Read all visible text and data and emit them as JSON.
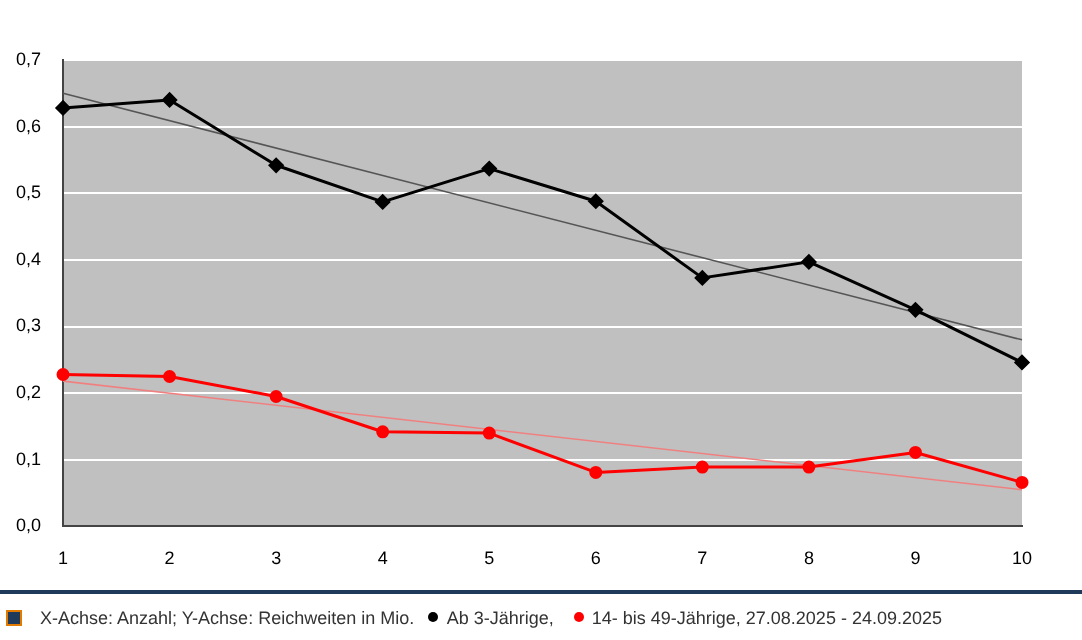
{
  "chart_data": {
    "type": "line",
    "categories": [
      "1",
      "2",
      "3",
      "4",
      "5",
      "6",
      "7",
      "8",
      "9",
      "10"
    ],
    "series": [
      {
        "name": "Ab 3-Jährige,",
        "color": "#000000",
        "marker": "diamond",
        "values": [
          0.628,
          0.64,
          0.542,
          0.487,
          0.537,
          0.488,
          0.373,
          0.397,
          0.325,
          0.246
        ]
      },
      {
        "name": "14- bis 49-Jährige, 27.08.2025 - 24.09.2025",
        "color": "#ff0000",
        "marker": "circle",
        "values": [
          0.228,
          0.225,
          0.195,
          0.142,
          0.14,
          0.081,
          0.089,
          0.089,
          0.111,
          0.066
        ]
      },
      {
        "type": "line",
        "color": "#555555",
        "marker": "none",
        "x": [
          "1",
          "10"
        ],
        "values": [
          0.65,
          0.28
        ]
      },
      {
        "type": "line",
        "color": "#f08080",
        "marker": "none",
        "x": [
          "1",
          "10"
        ],
        "values": [
          0.218,
          0.055
        ]
      }
    ],
    "ylim": [
      0,
      0.7
    ],
    "yticks": [
      {
        "value": 0,
        "label": "0,0"
      },
      {
        "value": 0.1,
        "label": "0,1"
      },
      {
        "value": 0.2,
        "label": "0,2"
      },
      {
        "value": 0.3,
        "label": "0,3"
      },
      {
        "value": 0.4,
        "label": "0,4"
      },
      {
        "value": 0.5,
        "label": "0,5"
      },
      {
        "value": 0.6,
        "label": "0,6"
      },
      {
        "value": 0.7,
        "label": "0,7"
      }
    ],
    "grid": "y",
    "legend": "bottom",
    "annotations": [
      "X-Achse: Anzahl; Y-Achse: Reichweiten in Mio."
    ]
  }
}
